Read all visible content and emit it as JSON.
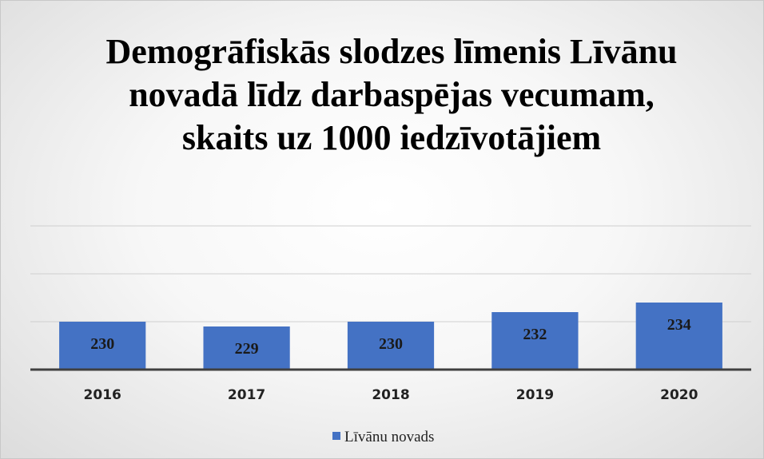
{
  "chart_data": {
    "type": "bar",
    "title": "Demogrāfiskās slodzes līmenis Līvānu novadā līdz darbaspējas vecumam, skaits uz 1000 iedzīvotājiem",
    "categories": [
      "2016",
      "2017",
      "2018",
      "2019",
      "2020"
    ],
    "series": [
      {
        "name": "Līvānu novads",
        "color": "#4472c4",
        "values": [
          230,
          229,
          230,
          232,
          234
        ]
      }
    ],
    "ylim": [
      220,
      250
    ],
    "yticks": [
      220,
      230,
      240,
      250
    ],
    "grid": true,
    "legend": "bottom"
  }
}
